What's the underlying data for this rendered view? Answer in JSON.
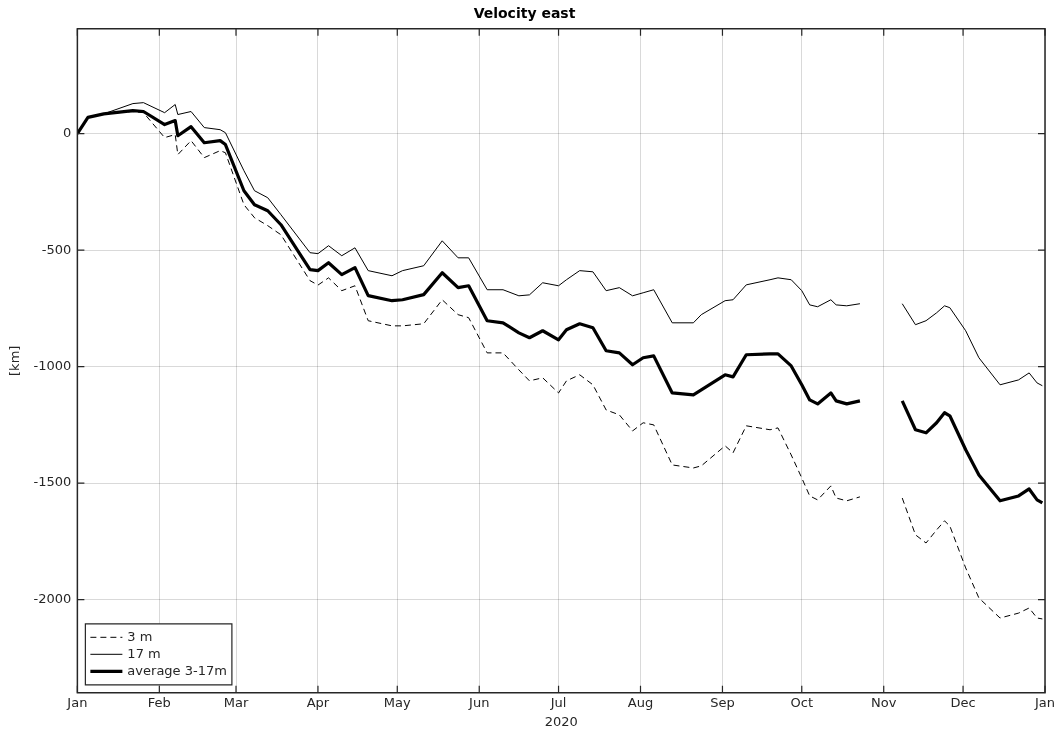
{
  "chart_data": {
    "type": "line",
    "title": "Velocity east",
    "xlabel": "2020",
    "ylabel": "[km]",
    "x": [
      "2020-01-01",
      "2020-01-05",
      "2020-01-11",
      "2020-01-22",
      "2020-01-26",
      "2020-02-03",
      "2020-02-07",
      "2020-02-08",
      "2020-02-13",
      "2020-02-18",
      "2020-02-24",
      "2020-02-26",
      "2020-03-04",
      "2020-03-08",
      "2020-03-13",
      "2020-03-18",
      "2020-03-29",
      "2020-04-01",
      "2020-04-05",
      "2020-04-10",
      "2020-04-15",
      "2020-04-20",
      "2020-04-29",
      "2020-05-03",
      "2020-05-11",
      "2020-05-18",
      "2020-05-24",
      "2020-05-28",
      "2020-06-04",
      "2020-06-10",
      "2020-06-16",
      "2020-06-20",
      "2020-06-25",
      "2020-07-01",
      "2020-07-04",
      "2020-07-09",
      "2020-07-14",
      "2020-07-19",
      "2020-07-24",
      "2020-07-29",
      "2020-08-02",
      "2020-08-06",
      "2020-08-13",
      "2020-08-21",
      "2020-08-24",
      "2020-09-02",
      "2020-09-05",
      "2020-09-10",
      "2020-09-19",
      "2020-09-22",
      "2020-09-27",
      "2020-10-01",
      "2020-10-04",
      "2020-10-07",
      "2020-10-12",
      "2020-10-14",
      "2020-10-18",
      "2020-10-23",
      "2020-10-30",
      "2020-11-08",
      "2020-11-13",
      "2020-11-17",
      "2020-11-21",
      "2020-11-24",
      "2020-11-26",
      "2020-12-02",
      "2020-12-07",
      "2020-12-15",
      "2020-12-22",
      "2020-12-26",
      "2020-12-29",
      "2020-12-31"
    ],
    "series": [
      {
        "name": "3 m",
        "color": "#000000",
        "line_style": "dashed",
        "values": [
          0,
          70,
          85,
          95,
          90,
          -17,
          -4,
          -90,
          -30,
          -103,
          -73,
          -82,
          -305,
          -361,
          -395,
          -434,
          -631,
          -650,
          -619,
          -674,
          -653,
          -803,
          -825,
          -825,
          -816,
          -713,
          -777,
          -790,
          -941,
          -941,
          -1014,
          -1061,
          -1048,
          -1113,
          -1061,
          -1035,
          -1078,
          -1186,
          -1207,
          -1276,
          -1241,
          -1250,
          -1422,
          -1435,
          -1426,
          -1340,
          -1370,
          -1254,
          -1271,
          -1263,
          -1379,
          -1478,
          -1555,
          -1572,
          -1512,
          -1564,
          -1576,
          -1559,
          null,
          -1564,
          -1722,
          -1757,
          -1701,
          -1662,
          -1684,
          -1864,
          -1993,
          -2079,
          -2058,
          -2036,
          -2079,
          -2083
        ]
      },
      {
        "name": "17 m",
        "color": "#000000",
        "line_style": "solid",
        "values": [
          0,
          70,
          85,
          129,
          133,
          90,
          125,
          82,
          95,
          26,
          17,
          4,
          -159,
          -245,
          -275,
          -348,
          -511,
          -515,
          -481,
          -524,
          -490,
          -588,
          -610,
          -588,
          -567,
          -460,
          -533,
          -533,
          -670,
          -670,
          -696,
          -692,
          -640,
          -653,
          -627,
          -588,
          -593,
          -674,
          -661,
          -696,
          -683,
          -670,
          -812,
          -812,
          -777,
          -717,
          -713,
          -649,
          -627,
          -619,
          -627,
          -674,
          -735,
          -743,
          -713,
          -735,
          -739,
          -730,
          null,
          -730,
          -820,
          -803,
          -769,
          -739,
          -747,
          -846,
          -962,
          -1078,
          -1057,
          -1027,
          -1070,
          -1082
        ]
      },
      {
        "name": "average 3-17m",
        "color": "#000000",
        "line_style": "solid",
        "values": [
          0,
          70,
          85,
          99,
          95,
          39,
          56,
          -9,
          30,
          -39,
          -30,
          -47,
          -245,
          -305,
          -331,
          -391,
          -584,
          -588,
          -554,
          -605,
          -575,
          -695,
          -717,
          -713,
          -691,
          -597,
          -661,
          -653,
          -803,
          -812,
          -855,
          -876,
          -846,
          -885,
          -842,
          -816,
          -833,
          -932,
          -941,
          -992,
          -962,
          -954,
          -1113,
          -1121,
          -1100,
          -1035,
          -1044,
          -949,
          -945,
          -945,
          -997,
          -1078,
          -1143,
          -1160,
          -1113,
          -1147,
          -1160,
          -1147,
          null,
          -1147,
          -1271,
          -1284,
          -1241,
          -1198,
          -1211,
          -1357,
          -1465,
          -1576,
          -1555,
          -1525,
          -1572,
          -1585
        ]
      }
    ],
    "xlim": [
      "2020-01-01",
      "2021-01-01"
    ],
    "xticks": [
      {
        "value": "2020-01-01",
        "label": "Jan"
      },
      {
        "value": "2020-02-01",
        "label": "Feb"
      },
      {
        "value": "2020-03-01",
        "label": "Mar"
      },
      {
        "value": "2020-04-01",
        "label": "Apr"
      },
      {
        "value": "2020-05-01",
        "label": "May"
      },
      {
        "value": "2020-06-01",
        "label": "Jun"
      },
      {
        "value": "2020-07-01",
        "label": "Jul"
      },
      {
        "value": "2020-08-01",
        "label": "Aug"
      },
      {
        "value": "2020-09-01",
        "label": "Sep"
      },
      {
        "value": "2020-10-01",
        "label": "Oct"
      },
      {
        "value": "2020-11-01",
        "label": "Nov"
      },
      {
        "value": "2020-12-01",
        "label": "Dec"
      },
      {
        "value": "2021-01-01",
        "label": "Jan"
      }
    ],
    "ylim": [
      -2400,
      450
    ],
    "yticks": [
      -2000,
      -1500,
      -1000,
      -500,
      0
    ],
    "grid": true,
    "legend": "bottom left",
    "marker": "none"
  }
}
